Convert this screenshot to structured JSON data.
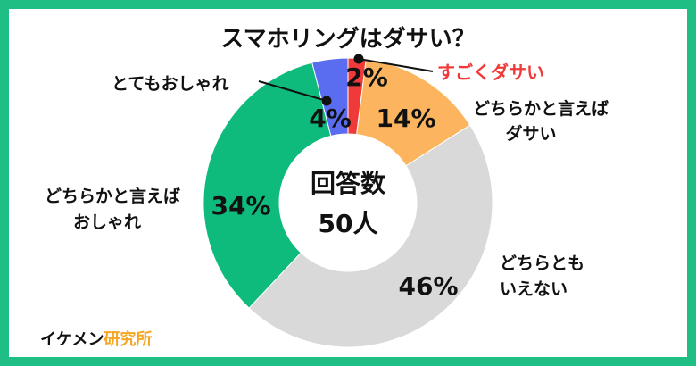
{
  "chart_data": {
    "type": "pie",
    "title": "スマホリングはダサい？",
    "center_label": "回答数",
    "center_value": "50人",
    "slices": [
      {
        "label": "すごくダサい",
        "value": 2,
        "pct_text": "2%",
        "color": "#f03a3a",
        "label_color": "#f03a3a"
      },
      {
        "label": "どちらかと言えばダサい",
        "lines": [
          "どちらかと言えば",
          "ダサい"
        ],
        "value": 14,
        "pct_text": "14%",
        "color": "#fcb55e",
        "label_color": "#111111"
      },
      {
        "label": "どちらともいえない",
        "lines": [
          "どちらとも",
          "いえない"
        ],
        "value": 46,
        "pct_text": "46%",
        "color": "#d9d9d9",
        "label_color": "#111111"
      },
      {
        "label": "どちらかと言えばおしゃれ",
        "lines": [
          "どちらかと言えば",
          "おしゃれ"
        ],
        "value": 34,
        "pct_text": "34%",
        "color": "#0fbb7c",
        "label_color": "#111111"
      },
      {
        "label": "とてもおしゃれ",
        "value": 4,
        "pct_text": "4%",
        "color": "#5a6cf0",
        "label_color": "#111111"
      }
    ],
    "legend": "none"
  },
  "brand": {
    "part1": "イケメン",
    "part2": "研究所",
    "accent": "#f5a623"
  },
  "frame_color": "#1fbe85"
}
